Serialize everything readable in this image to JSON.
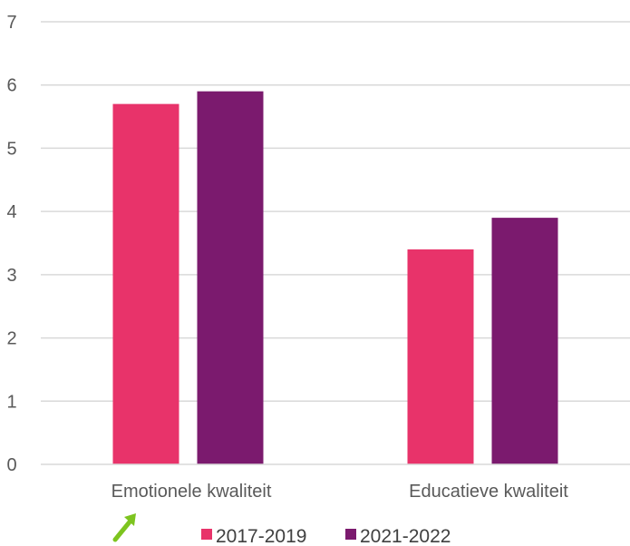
{
  "chart_data": {
    "type": "bar",
    "categories": [
      "Emotionele kwaliteit",
      "Educatieve kwaliteit"
    ],
    "series": [
      {
        "name": "2017-2019",
        "values": [
          5.7,
          3.4
        ],
        "color": "#E8336A"
      },
      {
        "name": "2021-2022",
        "values": [
          5.9,
          3.9
        ],
        "color": "#7B1A6E"
      }
    ],
    "ylim": [
      0,
      7
    ],
    "yticks": [
      "0",
      "1",
      "2",
      "3",
      "4",
      "5",
      "6",
      "7"
    ],
    "grid": true,
    "legend": "bottom-center",
    "annotation": {
      "icon": "arrow-icon",
      "color": "#7DC41F"
    }
  }
}
